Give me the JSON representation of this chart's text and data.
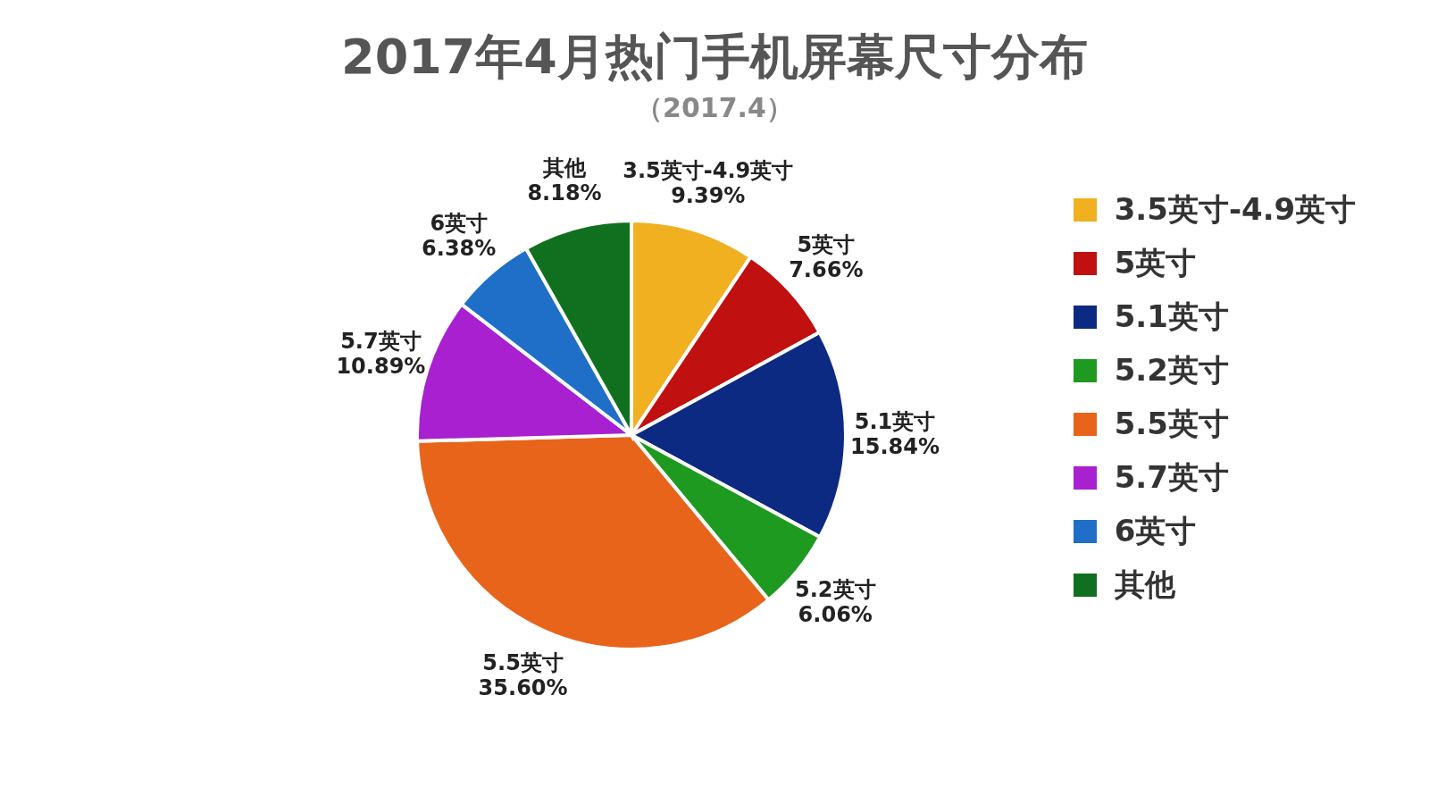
{
  "chart_data": {
    "type": "pie",
    "title": "2017年4月热门手机屏幕尺寸分布",
    "subtitle": "（2017.4）",
    "categories": [
      "3.5英寸-4.9英寸",
      "5英寸",
      "5.1英寸",
      "5.2英寸",
      "5.5英寸",
      "5.7英寸",
      "6英寸",
      "其他"
    ],
    "values": [
      9.39,
      7.66,
      15.84,
      6.06,
      35.6,
      10.89,
      6.38,
      8.18
    ],
    "value_labels": [
      "9.39%",
      "7.66%",
      "15.84%",
      "6.06%",
      "35.60%",
      "10.89%",
      "6.38%",
      "8.18%"
    ],
    "colors": [
      "#f0b020",
      "#c01010",
      "#0c2a82",
      "#1e9a20",
      "#e8641a",
      "#a820d0",
      "#1f6fc8",
      "#107020"
    ],
    "legend": "right"
  }
}
